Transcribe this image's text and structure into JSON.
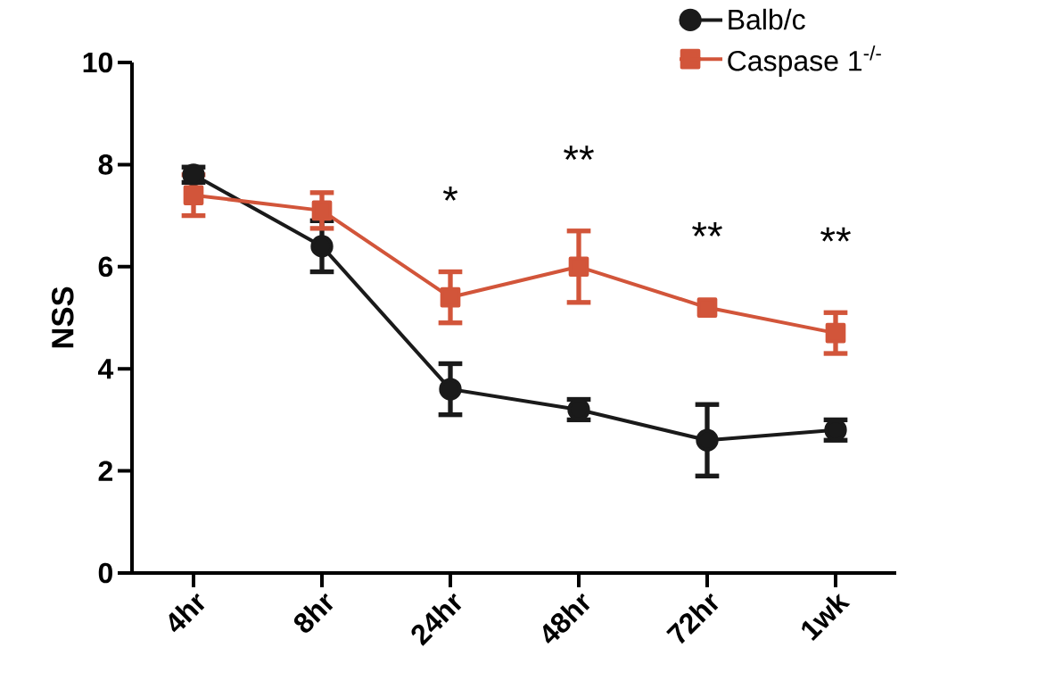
{
  "chart_data": {
    "type": "line",
    "ylabel": "NSS",
    "categories": [
      "4hr",
      "8hr",
      "24hr",
      "48hr",
      "72hr",
      "1wk"
    ],
    "series": [
      {
        "name": "Balb/c",
        "color": "#1a1a1a",
        "marker": "circle",
        "values": [
          7.8,
          6.4,
          3.6,
          3.2,
          2.6,
          2.8
        ],
        "errors": [
          0.15,
          0.5,
          0.5,
          0.2,
          0.7,
          0.2
        ]
      },
      {
        "name": "Caspase 1$^{-/-}$",
        "color": "#d2553a",
        "marker": "square",
        "values": [
          7.4,
          7.1,
          5.4,
          6.0,
          5.2,
          4.7
        ],
        "errors": [
          0.4,
          0.35,
          0.5,
          0.7,
          null,
          0.4
        ]
      }
    ],
    "ylim": [
      0,
      10
    ],
    "yticks": [
      0,
      2,
      4,
      6,
      8,
      10
    ],
    "legend": "top right",
    "grid": false,
    "annotations": [
      "*",
      "**",
      "**",
      "**"
    ]
  }
}
